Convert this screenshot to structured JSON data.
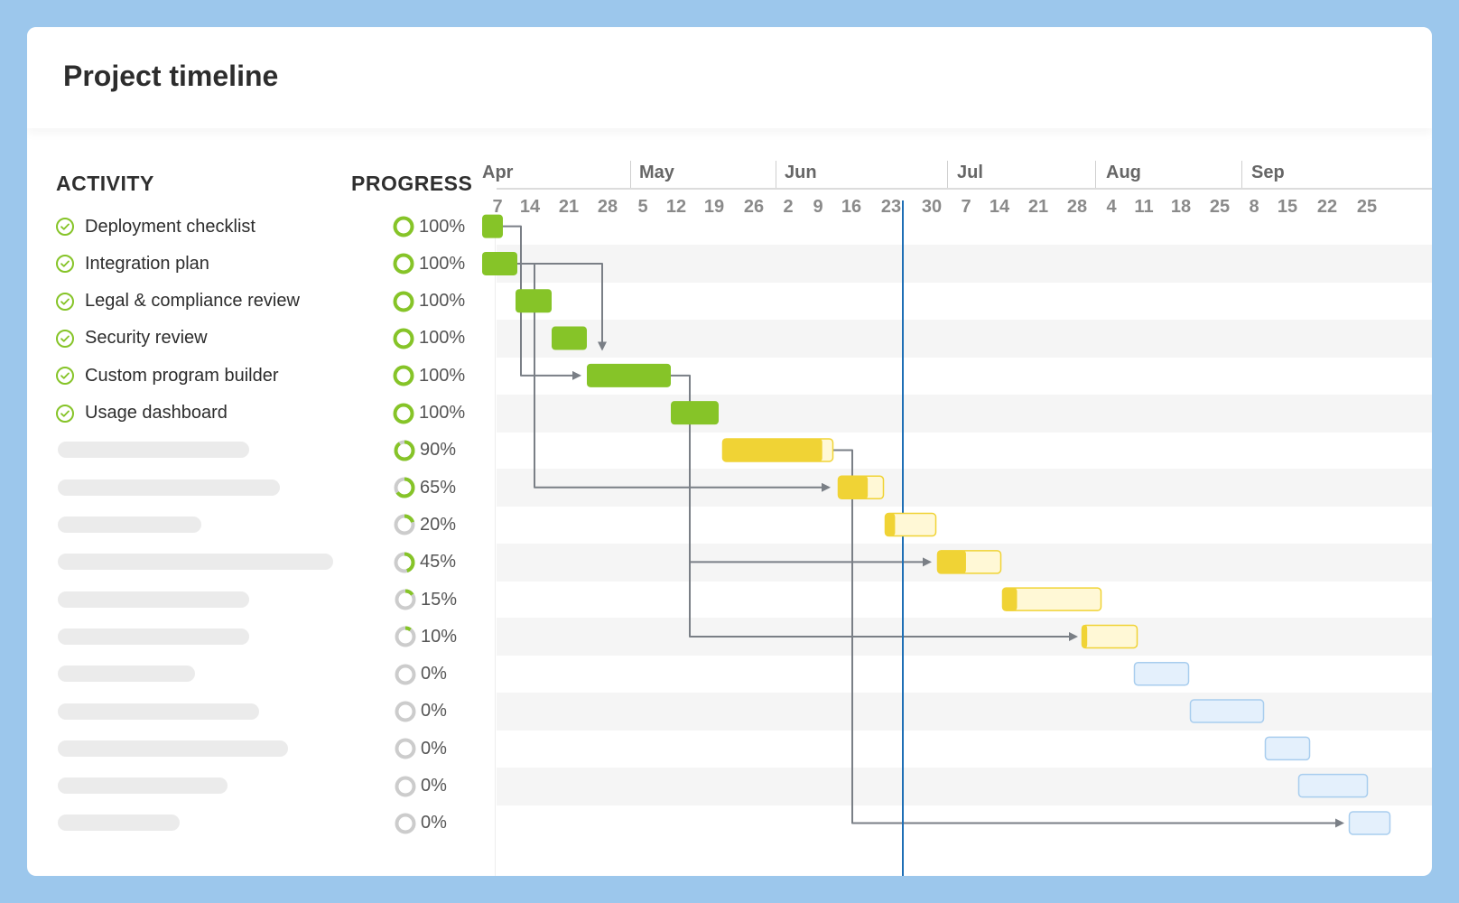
{
  "title": "Project timeline",
  "columns": {
    "activity": "ACTIVITY",
    "progress": "PROGRESS"
  },
  "timeline": {
    "months": [
      "Apr",
      "May",
      "Jun",
      "Jul",
      "Aug",
      "Sep"
    ],
    "weeks": [
      "7",
      "14",
      "21",
      "28",
      "5",
      "12",
      "19",
      "26",
      "2",
      "9",
      "16",
      "23",
      "30",
      "7",
      "14",
      "21",
      "28",
      "4",
      "11",
      "18",
      "25",
      "8",
      "15",
      "22",
      "25"
    ],
    "today_marker": "Jun 26"
  },
  "activities": [
    {
      "label": "Deployment checklist",
      "progress": "100%",
      "value": 1.0,
      "status": "done"
    },
    {
      "label": "Integration plan",
      "progress": "100%",
      "value": 1.0,
      "status": "done"
    },
    {
      "label": "Legal & compliance review",
      "progress": "100%",
      "value": 1.0,
      "status": "done"
    },
    {
      "label": "Security review",
      "progress": "100%",
      "value": 1.0,
      "status": "done"
    },
    {
      "label": "Custom program builder",
      "progress": "100%",
      "value": 1.0,
      "status": "done"
    },
    {
      "label": "Usage dashboard",
      "progress": "100%",
      "value": 1.0,
      "status": "done"
    },
    {
      "label": "",
      "progress": "90%",
      "value": 0.9,
      "status": "in-progress"
    },
    {
      "label": "",
      "progress": "65%",
      "value": 0.65,
      "status": "in-progress"
    },
    {
      "label": "",
      "progress": "20%",
      "value": 0.2,
      "status": "in-progress"
    },
    {
      "label": "",
      "progress": "45%",
      "value": 0.45,
      "status": "in-progress"
    },
    {
      "label": "",
      "progress": "15%",
      "value": 0.15,
      "status": "in-progress"
    },
    {
      "label": "",
      "progress": "10%",
      "value": 0.1,
      "status": "in-progress"
    },
    {
      "label": "",
      "progress": "0%",
      "value": 0,
      "status": "planned"
    },
    {
      "label": "",
      "progress": "0%",
      "value": 0,
      "status": "planned"
    },
    {
      "label": "",
      "progress": "0%",
      "value": 0,
      "status": "planned"
    },
    {
      "label": "",
      "progress": "0%",
      "value": 0,
      "status": "planned"
    },
    {
      "label": "",
      "progress": "0%",
      "value": 0,
      "status": "planned"
    }
  ],
  "colors": {
    "done": "#86c428",
    "in_progress": "#f0d335",
    "in_progress_light": "#fff8d6",
    "planned": "#e4f0fc",
    "planned_border": "#a8cdee",
    "today": "#1f6fb5",
    "arrow": "#7a7f86",
    "background": "#9cc7ec"
  }
}
